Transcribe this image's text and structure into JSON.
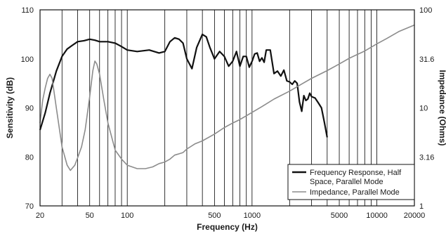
{
  "chart_data": {
    "type": "line",
    "xlabel": "Frequency (Hz)",
    "ylabel_left": "Sensitivity (dB)",
    "ylabel_right": "Impedance (Ohms)",
    "xscale": "log",
    "xlim": [
      20,
      20000
    ],
    "ylim_left": [
      70,
      110
    ],
    "ylim_right": [
      1,
      100
    ],
    "yscale_right": "log",
    "x_tick_labels": [
      "20",
      "50",
      "100",
      "500",
      "1000",
      "5000",
      "10000",
      "20000"
    ],
    "x_tick_values": [
      20,
      50,
      100,
      500,
      1000,
      5000,
      10000,
      20000
    ],
    "y_left_tick_labels": [
      "70",
      "80",
      "90",
      "100",
      "110"
    ],
    "y_left_tick_values": [
      70,
      80,
      90,
      100,
      110
    ],
    "y_right_tick_labels": [
      "1",
      "3.16",
      "10",
      "31.6",
      "100"
    ],
    "y_right_tick_values": [
      1,
      3.16,
      10,
      31.6,
      100
    ],
    "grid": "vertical",
    "legend_position": "bottom-right",
    "series": [
      {
        "name": "Frequency Response, Half Space, Parallel Mode",
        "axis": "left",
        "color": "#111111",
        "x": [
          20,
          22,
          24,
          27,
          30,
          33,
          36,
          40,
          45,
          50,
          55,
          60,
          70,
          80,
          90,
          100,
          120,
          150,
          180,
          200,
          220,
          240,
          260,
          280,
          300,
          330,
          360,
          400,
          430,
          460,
          500,
          550,
          600,
          650,
          700,
          750,
          800,
          850,
          900,
          950,
          1000,
          1050,
          1100,
          1150,
          1200,
          1250,
          1300,
          1400,
          1500,
          1600,
          1700,
          1800,
          1900,
          2000,
          2100,
          2200,
          2300,
          2400,
          2500,
          2600,
          2700,
          2800,
          2900,
          3000,
          3200,
          3400,
          3600,
          3800,
          4000
        ],
        "values": [
          85.5,
          89,
          93,
          97.5,
          100.5,
          102,
          102.7,
          103.5,
          103.7,
          104,
          103.8,
          103.5,
          103.5,
          103.2,
          102.5,
          101.8,
          101.5,
          101.8,
          101.2,
          101.5,
          103.5,
          104.3,
          104,
          103.2,
          100,
          98,
          102.3,
          105,
          104.5,
          102.3,
          100,
          101.5,
          100.5,
          98.5,
          99.5,
          101.5,
          98.5,
          100.5,
          100.5,
          98.3,
          99.5,
          101,
          101.2,
          99.5,
          100.2,
          99.3,
          101.8,
          101.8,
          97,
          97.5,
          96.5,
          97.7,
          95.5,
          95.3,
          94.8,
          95.5,
          95,
          91.2,
          89.3,
          92.5,
          91.5,
          91.8,
          93,
          92.3,
          92,
          91,
          90,
          87,
          84
        ]
      },
      {
        "name": "Impedance, Parallel Mode",
        "axis": "right",
        "color": "#8c8c8c",
        "x": [
          20,
          21,
          22,
          23,
          24,
          25,
          27,
          30,
          33,
          35,
          38,
          40,
          43,
          46,
          50,
          53,
          55,
          57,
          60,
          65,
          70,
          80,
          90,
          100,
          120,
          140,
          160,
          180,
          200,
          220,
          240,
          260,
          280,
          300,
          320,
          350,
          400,
          500,
          600,
          700,
          800,
          1000,
          1200,
          1500,
          2000,
          2500,
          3000,
          4000,
          5000,
          6000,
          8000,
          10000,
          12000,
          15000,
          20000
        ],
        "values": [
          7,
          12,
          16,
          20,
          22,
          20,
          10,
          4,
          2.6,
          2.3,
          2.6,
          3.1,
          4,
          6,
          13,
          24,
          30,
          28,
          22,
          12,
          7,
          3.7,
          3,
          2.6,
          2.4,
          2.4,
          2.5,
          2.7,
          2.8,
          3.0,
          3.3,
          3.4,
          3.5,
          3.8,
          4.0,
          4.3,
          4.6,
          5.4,
          6.3,
          7.0,
          7.6,
          9.0,
          10.3,
          12.3,
          14.8,
          17.5,
          20.0,
          24.0,
          28.0,
          32.0,
          38.0,
          45.0,
          51.0,
          60.0,
          70.0
        ]
      }
    ]
  }
}
